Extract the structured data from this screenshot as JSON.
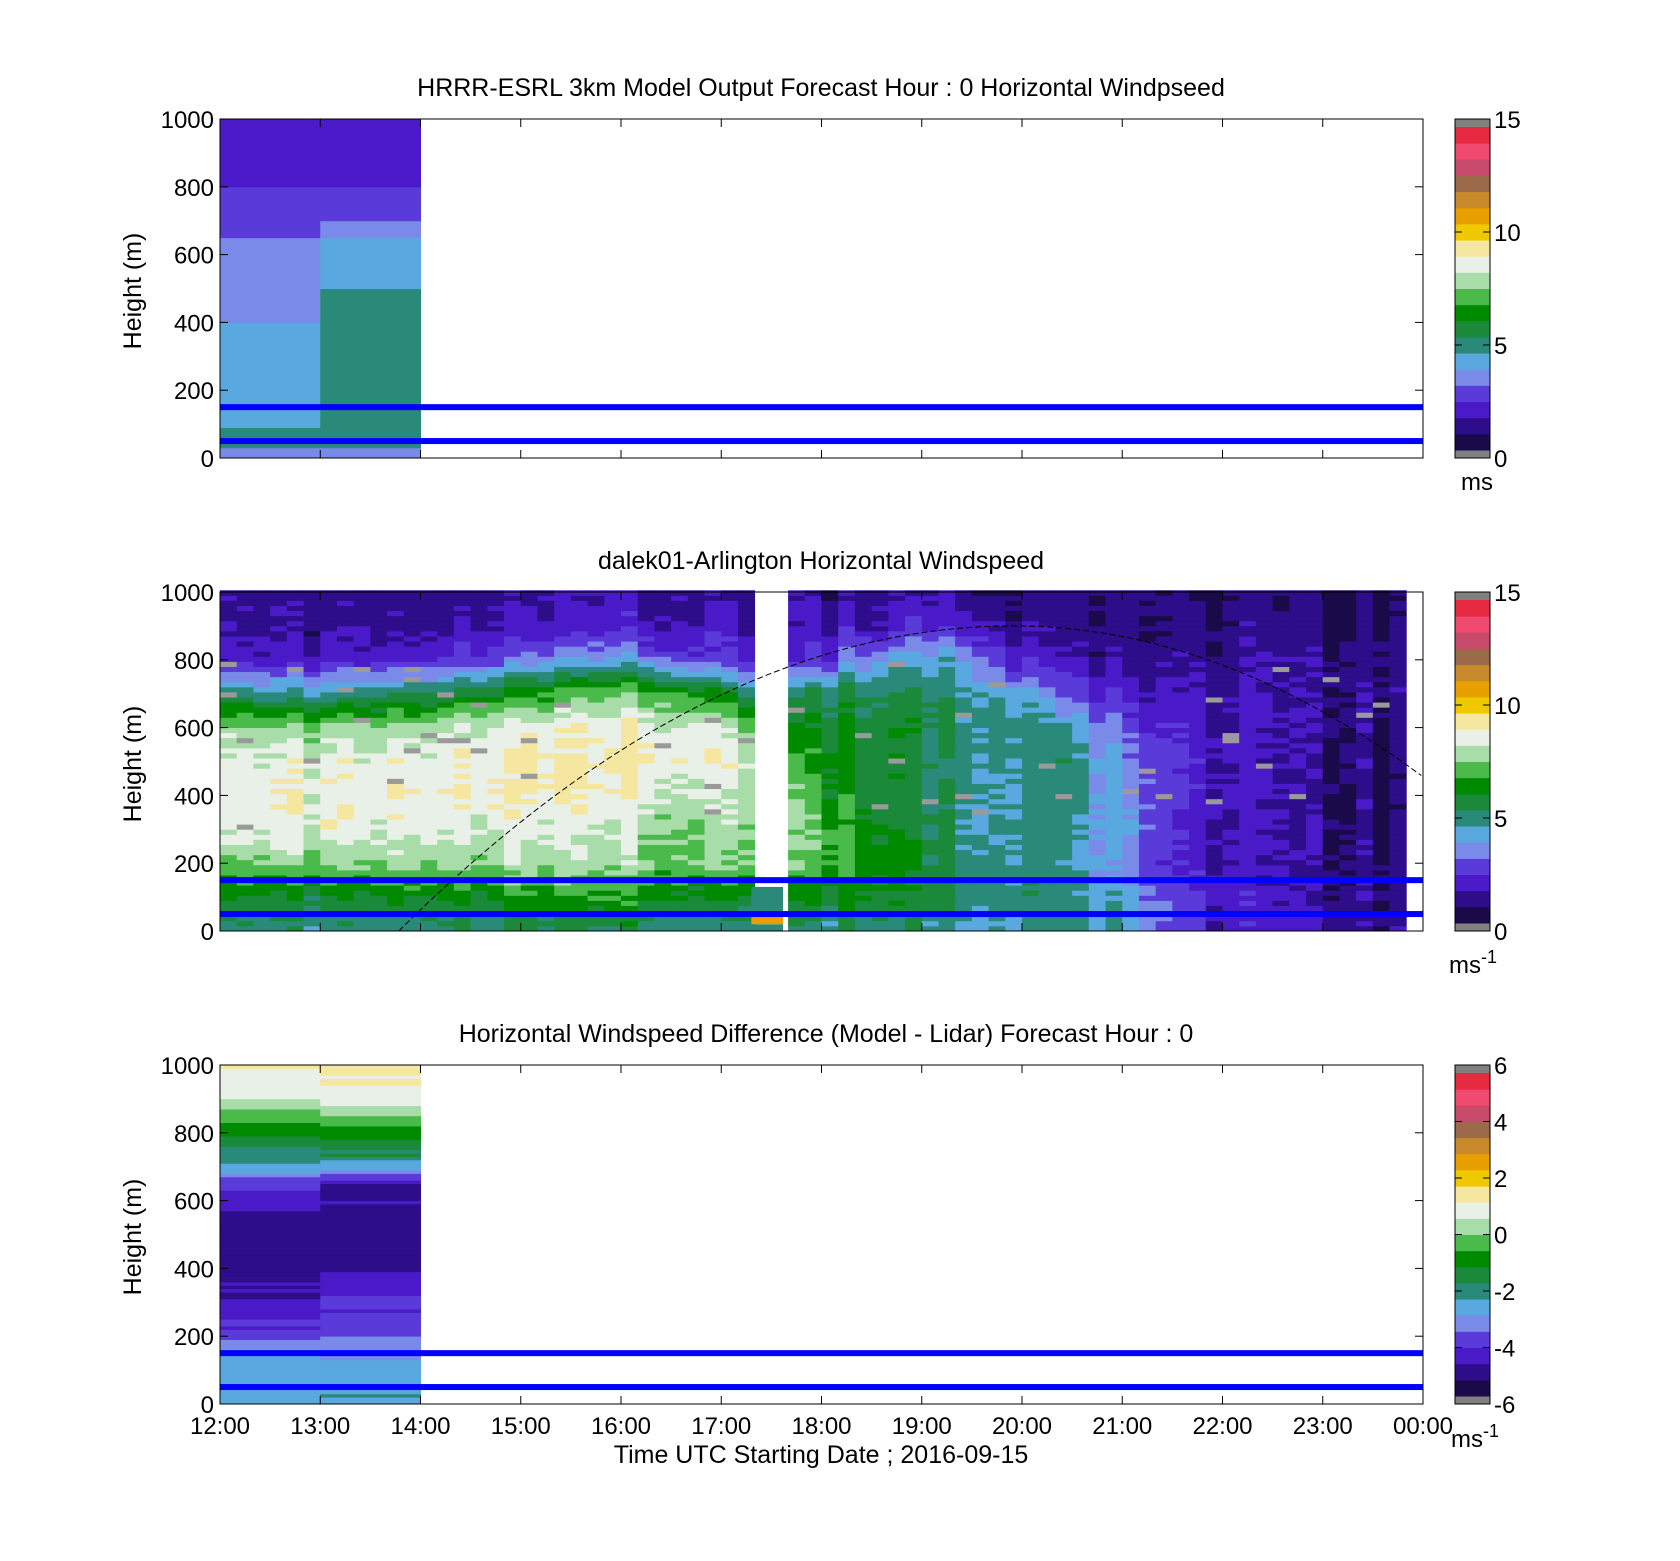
{
  "figure": {
    "xlabel": "Time UTC  Starting Date ; 2016-09-15",
    "x_tick_labels": [
      "12:00",
      "13:00",
      "14:00",
      "15:00",
      "16:00",
      "17:00",
      "18:00",
      "19:00",
      "20:00",
      "21:00",
      "22:00",
      "23:00",
      "00:00"
    ]
  },
  "colors": {
    "colormap": [
      "#1a0a4a",
      "#2d0d8a",
      "#4a1ac8",
      "#5a3ad8",
      "#7a8ae8",
      "#5aa8e0",
      "#2a8a7a",
      "#1a8a3a",
      "#008a00",
      "#4aba4a",
      "#a8dca8",
      "#e8f0e8",
      "#f5e6a0",
      "#f0c800",
      "#e8a000",
      "#c88a2a",
      "#9a6a4a",
      "#c84a6a",
      "#f04a70",
      "#e82a40"
    ],
    "under_color": "#808080",
    "over_color": "#808080",
    "reference_line": "#0000ff",
    "missing": "#9a9a9a"
  },
  "chart_data": [
    {
      "type": "heatmap",
      "title": "HRRR-ESRL 3km Model Output   Forecast Hour : 0 Horizontal Windpseed",
      "ylabel": "Height (m)",
      "xlim": [
        "12:00",
        "00:00"
      ],
      "ylim": [
        0,
        1000
      ],
      "y_tick_labels": [
        "0",
        "200",
        "400",
        "600",
        "800",
        "1000"
      ],
      "columns": [
        {
          "start": "12:00",
          "end": "13:00",
          "levels": [
            {
              "z_top": 30,
              "v": 3.2
            },
            {
              "z_top": 60,
              "v": 4.5
            },
            {
              "z_top": 90,
              "v": 4.6
            },
            {
              "z_top": 120,
              "v": 4.4
            },
            {
              "z_top": 160,
              "v": 4.2
            },
            {
              "z_top": 200,
              "v": 4.0
            },
            {
              "z_top": 250,
              "v": 3.8
            },
            {
              "z_top": 300,
              "v": 3.9
            },
            {
              "z_top": 350,
              "v": 3.9
            },
            {
              "z_top": 400,
              "v": 3.9
            },
            {
              "z_top": 450,
              "v": 3.6
            },
            {
              "z_top": 500,
              "v": 3.6
            },
            {
              "z_top": 550,
              "v": 3.4
            },
            {
              "z_top": 600,
              "v": 3.3
            },
            {
              "z_top": 650,
              "v": 3.3
            },
            {
              "z_top": 700,
              "v": 2.8
            },
            {
              "z_top": 800,
              "v": 2.3
            },
            {
              "z_top": 900,
              "v": 1.7
            },
            {
              "z_top": 1000,
              "v": 1.6
            }
          ]
        },
        {
          "start": "13:00",
          "end": "14:00",
          "levels": [
            {
              "z_top": 30,
              "v": 3.4
            },
            {
              "z_top": 60,
              "v": 4.9
            },
            {
              "z_top": 90,
              "v": 5.0
            },
            {
              "z_top": 120,
              "v": 5.0
            },
            {
              "z_top": 160,
              "v": 5.0
            },
            {
              "z_top": 200,
              "v": 5.0
            },
            {
              "z_top": 250,
              "v": 5.0
            },
            {
              "z_top": 300,
              "v": 5.0
            },
            {
              "z_top": 350,
              "v": 5.0
            },
            {
              "z_top": 400,
              "v": 5.0
            },
            {
              "z_top": 450,
              "v": 4.8
            },
            {
              "z_top": 500,
              "v": 4.8
            },
            {
              "z_top": 550,
              "v": 4.3
            },
            {
              "z_top": 600,
              "v": 4.2
            },
            {
              "z_top": 650,
              "v": 4.2
            },
            {
              "z_top": 700,
              "v": 3.2
            },
            {
              "z_top": 800,
              "v": 2.4
            },
            {
              "z_top": 900,
              "v": 1.8
            },
            {
              "z_top": 1000,
              "v": 1.6
            }
          ]
        }
      ],
      "reference_heights_m": [
        50,
        150
      ],
      "colorbar": {
        "min": 0,
        "max": 15,
        "tick_labels": [
          "0",
          "5",
          "10",
          "15"
        ],
        "unit": "ms",
        "unit_superscript": ""
      }
    },
    {
      "type": "heatmap",
      "title": "dalek01-Arlington  Horizontal Windspeed",
      "ylabel": "Height (m)",
      "xlim": [
        "12:00",
        "00:00"
      ],
      "ylim": [
        0,
        1000
      ],
      "y_tick_labels": [
        "0",
        "200",
        "400",
        "600",
        "800",
        "1000"
      ],
      "data_end": "23:50",
      "gap": [
        "17:18",
        "17:37"
      ],
      "gap_low_band": [
        {
          "z_top": 20,
          "v": 5.0
        },
        {
          "z_top": 45,
          "v": 10.5
        },
        {
          "z_top": 130,
          "v": 4.5
        }
      ],
      "profile_key_times": [
        "12:00",
        "13:00",
        "14:00",
        "15:00",
        "16:00",
        "16:30",
        "17:00",
        "17:17",
        "17:38",
        "18:00",
        "18:30",
        "19:00",
        "19:30",
        "20:00",
        "20:30",
        "21:00",
        "21:30",
        "22:00",
        "23:00",
        "23:50"
      ],
      "profile_heights_m": [
        0,
        100,
        200,
        300,
        400,
        500,
        600,
        700,
        800,
        900,
        1000
      ],
      "profile_values": [
        [
          4.8,
          5.8,
          7.2,
          8.3,
          8.6,
          8.4,
          7.8,
          5.0,
          1.8,
          1.3,
          1.2
        ],
        [
          4.6,
          5.8,
          7.4,
          8.6,
          8.8,
          8.5,
          7.6,
          4.6,
          1.6,
          1.2,
          1.2
        ],
        [
          4.8,
          6.2,
          7.8,
          8.7,
          8.9,
          8.8,
          8.0,
          5.4,
          2.2,
          1.4,
          1.2
        ],
        [
          5.0,
          6.4,
          7.9,
          8.6,
          9.0,
          9.0,
          8.6,
          6.4,
          3.2,
          1.6,
          1.3
        ],
        [
          5.0,
          6.6,
          7.7,
          8.0,
          8.7,
          9.0,
          8.9,
          7.6,
          3.8,
          1.8,
          1.4
        ],
        [
          4.8,
          6.2,
          7.4,
          7.7,
          8.4,
          8.9,
          8.6,
          7.0,
          3.0,
          1.6,
          1.3
        ],
        [
          4.5,
          5.8,
          7.3,
          7.6,
          8.0,
          8.5,
          8.2,
          5.8,
          2.4,
          1.5,
          1.2
        ],
        [
          4.4,
          5.8,
          7.2,
          7.6,
          8.0,
          8.2,
          7.4,
          5.0,
          2.0,
          1.3,
          1.2
        ],
        [
          4.6,
          5.8,
          7.4,
          7.8,
          7.6,
          7.0,
          6.0,
          4.6,
          1.8,
          1.3,
          1.2
        ],
        [
          4.8,
          6.0,
          7.0,
          7.0,
          6.6,
          6.2,
          5.8,
          5.2,
          2.4,
          1.5,
          1.2
        ],
        [
          5.0,
          6.3,
          6.8,
          6.4,
          6.0,
          6.0,
          6.0,
          5.8,
          3.8,
          1.8,
          1.3
        ],
        [
          4.8,
          5.6,
          5.8,
          5.4,
          5.3,
          5.4,
          5.6,
          5.4,
          4.4,
          2.2,
          1.3
        ],
        [
          4.6,
          5.1,
          5.0,
          4.9,
          4.8,
          4.9,
          5.0,
          4.9,
          3.8,
          2.0,
          1.2
        ],
        [
          4.6,
          4.9,
          4.7,
          4.6,
          4.6,
          4.6,
          4.8,
          4.0,
          1.9,
          1.1,
          0.8
        ],
        [
          4.6,
          4.7,
          4.4,
          4.4,
          4.6,
          4.8,
          4.2,
          2.6,
          1.3,
          0.9,
          0.8
        ],
        [
          4.5,
          3.9,
          3.3,
          3.7,
          3.5,
          3.3,
          2.8,
          1.8,
          1.2,
          0.8,
          0.8
        ],
        [
          3.0,
          2.8,
          2.3,
          2.3,
          2.6,
          2.5,
          2.1,
          1.6,
          1.3,
          1.0,
          0.8
        ],
        [
          1.8,
          1.8,
          1.7,
          1.6,
          1.7,
          1.6,
          1.5,
          1.4,
          1.2,
          1.0,
          0.8
        ],
        [
          1.4,
          1.2,
          1.1,
          1.2,
          1.1,
          1.1,
          1.2,
          1.2,
          1.1,
          0.9,
          0.6
        ],
        [
          1.2,
          1.0,
          0.8,
          0.8,
          0.7,
          0.8,
          0.9,
          1.1,
          1.1,
          0.9,
          0.5
        ]
      ],
      "sun_curve": {
        "start": [
          "13:47",
          0
        ],
        "peak": [
          "19:55",
          900
        ],
        "end": [
          "00:00",
          455
        ]
      },
      "reference_heights_m": [
        50,
        150
      ],
      "colorbar": {
        "min": 0,
        "max": 15,
        "tick_labels": [
          "0",
          "5",
          "10",
          "15"
        ],
        "unit": "ms",
        "unit_superscript": "-1"
      }
    },
    {
      "type": "heatmap",
      "title": "Horizontal Windspeed Difference (Model - Lidar) Forecast Hour : 0",
      "ylabel": "Height (m)",
      "xlim": [
        "12:00",
        "00:00"
      ],
      "ylim": [
        0,
        1000
      ],
      "y_tick_labels": [
        "0",
        "200",
        "400",
        "600",
        "800",
        "1000"
      ],
      "profile_heights_m": [
        0,
        60,
        150,
        220,
        300,
        400,
        500,
        600,
        650,
        700,
        800,
        850,
        900,
        950,
        1000
      ],
      "columns": [
        {
          "start": "12:00",
          "end": "13:00",
          "values": [
            -2.6,
            -2.9,
            -2.8,
            -4.1,
            -4.7,
            -5.2,
            -5.0,
            -4.8,
            -3.9,
            -2.6,
            -1.2,
            -0.3,
            0.4,
            1.0,
            1.2
          ]
        },
        {
          "start": "13:00",
          "end": "14:00",
          "values": [
            -2.4,
            -2.6,
            -3.2,
            -4.0,
            -4.2,
            -5.0,
            -5.1,
            -4.9,
            -5.0,
            -2.8,
            -0.6,
            0.2,
            0.8,
            1.0,
            1.3
          ]
        }
      ],
      "reference_heights_m": [
        50,
        150
      ],
      "colorbar": {
        "min": -6,
        "max": 6,
        "tick_labels": [
          "-6",
          "-4",
          "-2",
          "0",
          "2",
          "4",
          "6"
        ],
        "unit": "ms",
        "unit_superscript": "-1"
      }
    }
  ]
}
